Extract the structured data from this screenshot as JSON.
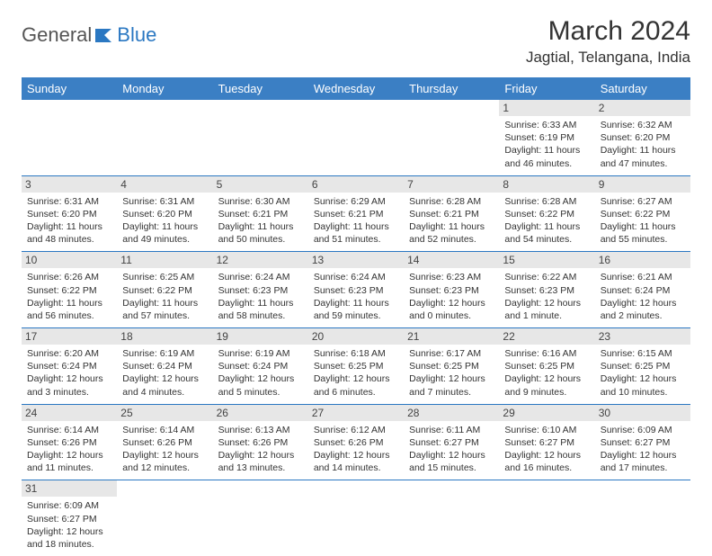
{
  "logo": {
    "general": "General",
    "blue": "Blue"
  },
  "title": "March 2024",
  "location": "Jagtial, Telangana, India",
  "header_bg": "#3b7fc4",
  "divider_color": "#2b78c2",
  "daynum_bg": "#e7e7e7",
  "weekdays": [
    "Sunday",
    "Monday",
    "Tuesday",
    "Wednesday",
    "Thursday",
    "Friday",
    "Saturday"
  ],
  "weeks": [
    [
      null,
      null,
      null,
      null,
      null,
      {
        "n": "1",
        "sr": "Sunrise: 6:33 AM",
        "ss": "Sunset: 6:19 PM",
        "dl": "Daylight: 11 hours and 46 minutes."
      },
      {
        "n": "2",
        "sr": "Sunrise: 6:32 AM",
        "ss": "Sunset: 6:20 PM",
        "dl": "Daylight: 11 hours and 47 minutes."
      }
    ],
    [
      {
        "n": "3",
        "sr": "Sunrise: 6:31 AM",
        "ss": "Sunset: 6:20 PM",
        "dl": "Daylight: 11 hours and 48 minutes."
      },
      {
        "n": "4",
        "sr": "Sunrise: 6:31 AM",
        "ss": "Sunset: 6:20 PM",
        "dl": "Daylight: 11 hours and 49 minutes."
      },
      {
        "n": "5",
        "sr": "Sunrise: 6:30 AM",
        "ss": "Sunset: 6:21 PM",
        "dl": "Daylight: 11 hours and 50 minutes."
      },
      {
        "n": "6",
        "sr": "Sunrise: 6:29 AM",
        "ss": "Sunset: 6:21 PM",
        "dl": "Daylight: 11 hours and 51 minutes."
      },
      {
        "n": "7",
        "sr": "Sunrise: 6:28 AM",
        "ss": "Sunset: 6:21 PM",
        "dl": "Daylight: 11 hours and 52 minutes."
      },
      {
        "n": "8",
        "sr": "Sunrise: 6:28 AM",
        "ss": "Sunset: 6:22 PM",
        "dl": "Daylight: 11 hours and 54 minutes."
      },
      {
        "n": "9",
        "sr": "Sunrise: 6:27 AM",
        "ss": "Sunset: 6:22 PM",
        "dl": "Daylight: 11 hours and 55 minutes."
      }
    ],
    [
      {
        "n": "10",
        "sr": "Sunrise: 6:26 AM",
        "ss": "Sunset: 6:22 PM",
        "dl": "Daylight: 11 hours and 56 minutes."
      },
      {
        "n": "11",
        "sr": "Sunrise: 6:25 AM",
        "ss": "Sunset: 6:22 PM",
        "dl": "Daylight: 11 hours and 57 minutes."
      },
      {
        "n": "12",
        "sr": "Sunrise: 6:24 AM",
        "ss": "Sunset: 6:23 PM",
        "dl": "Daylight: 11 hours and 58 minutes."
      },
      {
        "n": "13",
        "sr": "Sunrise: 6:24 AM",
        "ss": "Sunset: 6:23 PM",
        "dl": "Daylight: 11 hours and 59 minutes."
      },
      {
        "n": "14",
        "sr": "Sunrise: 6:23 AM",
        "ss": "Sunset: 6:23 PM",
        "dl": "Daylight: 12 hours and 0 minutes."
      },
      {
        "n": "15",
        "sr": "Sunrise: 6:22 AM",
        "ss": "Sunset: 6:23 PM",
        "dl": "Daylight: 12 hours and 1 minute."
      },
      {
        "n": "16",
        "sr": "Sunrise: 6:21 AM",
        "ss": "Sunset: 6:24 PM",
        "dl": "Daylight: 12 hours and 2 minutes."
      }
    ],
    [
      {
        "n": "17",
        "sr": "Sunrise: 6:20 AM",
        "ss": "Sunset: 6:24 PM",
        "dl": "Daylight: 12 hours and 3 minutes."
      },
      {
        "n": "18",
        "sr": "Sunrise: 6:19 AM",
        "ss": "Sunset: 6:24 PM",
        "dl": "Daylight: 12 hours and 4 minutes."
      },
      {
        "n": "19",
        "sr": "Sunrise: 6:19 AM",
        "ss": "Sunset: 6:24 PM",
        "dl": "Daylight: 12 hours and 5 minutes."
      },
      {
        "n": "20",
        "sr": "Sunrise: 6:18 AM",
        "ss": "Sunset: 6:25 PM",
        "dl": "Daylight: 12 hours and 6 minutes."
      },
      {
        "n": "21",
        "sr": "Sunrise: 6:17 AM",
        "ss": "Sunset: 6:25 PM",
        "dl": "Daylight: 12 hours and 7 minutes."
      },
      {
        "n": "22",
        "sr": "Sunrise: 6:16 AM",
        "ss": "Sunset: 6:25 PM",
        "dl": "Daylight: 12 hours and 9 minutes."
      },
      {
        "n": "23",
        "sr": "Sunrise: 6:15 AM",
        "ss": "Sunset: 6:25 PM",
        "dl": "Daylight: 12 hours and 10 minutes."
      }
    ],
    [
      {
        "n": "24",
        "sr": "Sunrise: 6:14 AM",
        "ss": "Sunset: 6:26 PM",
        "dl": "Daylight: 12 hours and 11 minutes."
      },
      {
        "n": "25",
        "sr": "Sunrise: 6:14 AM",
        "ss": "Sunset: 6:26 PM",
        "dl": "Daylight: 12 hours and 12 minutes."
      },
      {
        "n": "26",
        "sr": "Sunrise: 6:13 AM",
        "ss": "Sunset: 6:26 PM",
        "dl": "Daylight: 12 hours and 13 minutes."
      },
      {
        "n": "27",
        "sr": "Sunrise: 6:12 AM",
        "ss": "Sunset: 6:26 PM",
        "dl": "Daylight: 12 hours and 14 minutes."
      },
      {
        "n": "28",
        "sr": "Sunrise: 6:11 AM",
        "ss": "Sunset: 6:27 PM",
        "dl": "Daylight: 12 hours and 15 minutes."
      },
      {
        "n": "29",
        "sr": "Sunrise: 6:10 AM",
        "ss": "Sunset: 6:27 PM",
        "dl": "Daylight: 12 hours and 16 minutes."
      },
      {
        "n": "30",
        "sr": "Sunrise: 6:09 AM",
        "ss": "Sunset: 6:27 PM",
        "dl": "Daylight: 12 hours and 17 minutes."
      }
    ],
    [
      {
        "n": "31",
        "sr": "Sunrise: 6:09 AM",
        "ss": "Sunset: 6:27 PM",
        "dl": "Daylight: 12 hours and 18 minutes."
      },
      null,
      null,
      null,
      null,
      null,
      null
    ]
  ]
}
